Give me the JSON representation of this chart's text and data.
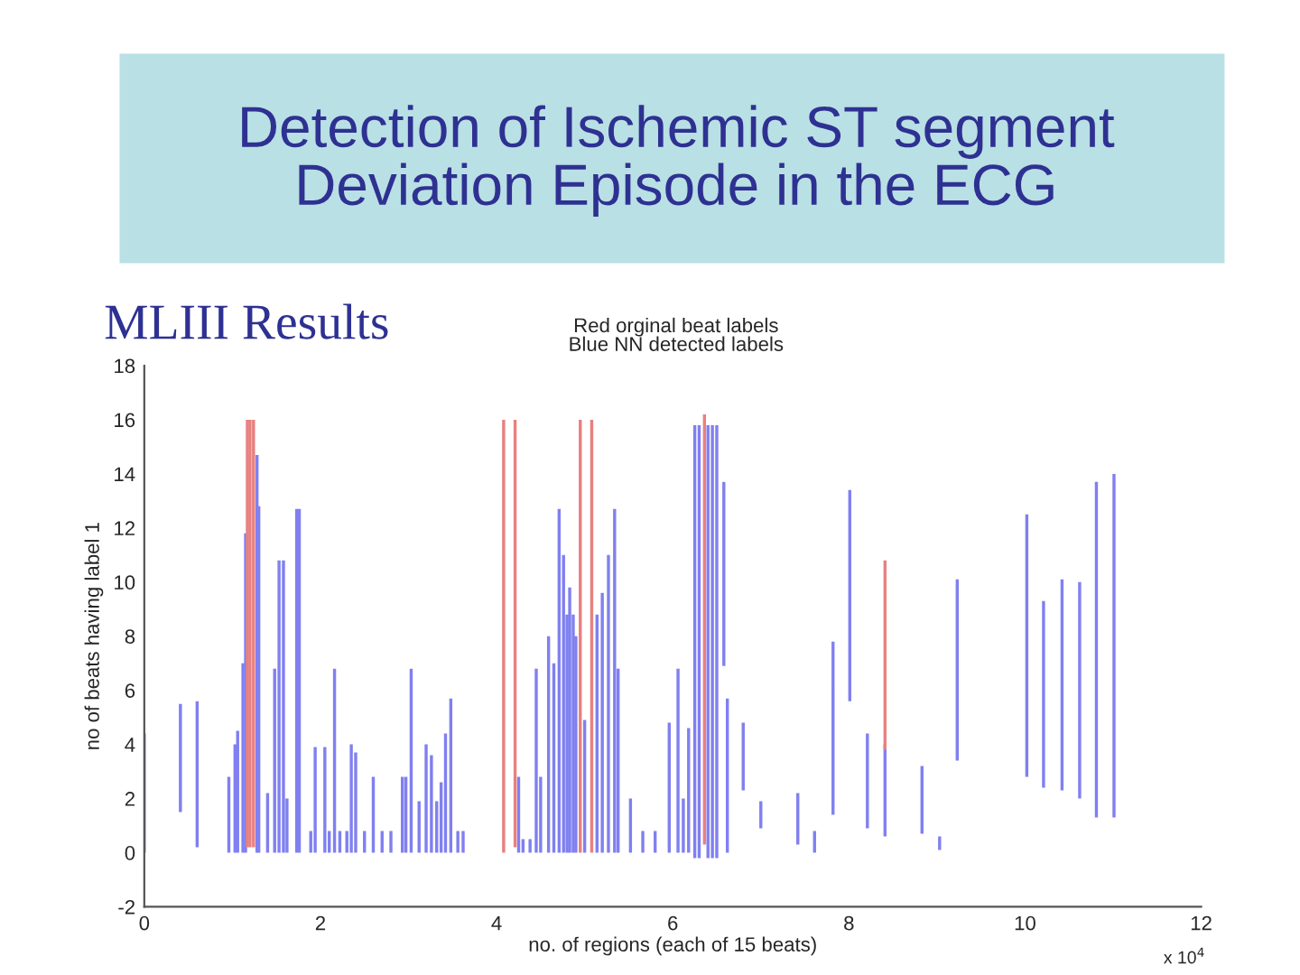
{
  "chart_data": {
    "type": "bar",
    "title": "Detection of Ischemic ST segment\nDeviation Episode in the ECG",
    "subtitle": "MLIII Results",
    "xlabel": "no. of regions (each of 15 beats)",
    "ylabel": "no of beats having label 1",
    "annotations": [
      "Red orginal beat labels\nBlue NN detected labels",
      "x 10$^{4}$"
    ],
    "series": [
      {
        "color": "#8080f0",
        "x": [
          0.0,
          0.41,
          0.6,
          0.96,
          1.03,
          1.06,
          1.12,
          1.15,
          1.28,
          1.3,
          1.4,
          1.48,
          1.53,
          1.58,
          1.62,
          1.73,
          1.76,
          1.89,
          1.94,
          2.05,
          2.1,
          2.16,
          2.22,
          2.3,
          2.35,
          2.4,
          2.5,
          2.6,
          2.7,
          2.8,
          2.93,
          2.97,
          3.03,
          3.12,
          3.2,
          3.26,
          3.32,
          3.37,
          3.42,
          3.48,
          3.56,
          3.62,
          4.25,
          4.3,
          4.38,
          4.45,
          4.5,
          4.59,
          4.65,
          4.71,
          4.76,
          4.8,
          4.83,
          4.87,
          4.9,
          5.0,
          5.14,
          5.2,
          5.27,
          5.34,
          5.38,
          5.52,
          5.66,
          5.8,
          5.96,
          6.06,
          6.12,
          6.18,
          6.25,
          6.3,
          6.4,
          6.45,
          6.5,
          6.58,
          6.62,
          6.8,
          7.0,
          7.42,
          7.61,
          7.82,
          8.01,
          8.21,
          8.41,
          8.83,
          9.03,
          9.23,
          10.02,
          10.21,
          10.42,
          10.62,
          10.81,
          11.01
        ],
        "base": [
          0,
          1.5,
          0.2,
          0,
          0,
          0,
          0,
          0,
          0,
          0,
          0,
          0,
          0,
          0,
          0,
          0,
          0,
          0,
          0,
          0,
          0,
          0,
          0,
          0,
          0,
          0,
          0,
          0,
          0,
          0,
          0,
          0,
          0,
          0,
          0,
          0,
          0,
          0,
          0,
          0,
          0,
          0,
          0,
          0,
          0,
          0,
          0,
          0,
          0,
          0,
          0,
          0,
          0,
          0,
          0,
          0,
          0,
          0,
          0,
          0,
          0,
          0,
          0,
          0,
          0,
          0,
          0,
          0,
          -0.2,
          -0.2,
          -0.2,
          -0.2,
          -0.2,
          6.9,
          0,
          2.3,
          0.9,
          0.3,
          0,
          1.4,
          5.6,
          0.9,
          0.6,
          0.7,
          0.1,
          3.4,
          2.8,
          2.4,
          2.3,
          2.0,
          1.3,
          1.3
        ],
        "values": [
          4.4,
          4.0,
          5.4,
          2.8,
          4,
          4.5,
          7,
          11.8,
          14.7,
          12.8,
          2.2,
          6.8,
          10.8,
          10.8,
          2,
          12.7,
          12.7,
          0.8,
          3.9,
          3.9,
          0.8,
          6.8,
          0.8,
          0.8,
          4,
          3.7,
          0.8,
          2.8,
          0.8,
          0.8,
          2.8,
          2.8,
          6.8,
          1.9,
          4,
          3.6,
          1.9,
          2.6,
          4.4,
          5.7,
          0.8,
          0.8,
          2.8,
          0.5,
          0.5,
          6.8,
          2.8,
          8,
          7,
          12.7,
          11,
          8.8,
          9.8,
          8.8,
          8,
          4.9,
          8.8,
          9.6,
          11,
          12.7,
          6.8,
          2,
          0.8,
          0.8,
          4.8,
          6.8,
          2,
          4.6,
          16.0,
          16.0,
          16.0,
          16.0,
          16.0,
          6.8,
          5.7,
          2.5,
          1.0,
          1.9,
          0.8,
          6.4,
          7.8,
          3.5,
          3.4,
          2.5,
          0.5,
          6.7,
          9.7,
          6.9,
          7.8,
          8.0,
          12.4,
          12.7
        ]
      },
      {
        "color": "#e88080",
        "x": [
          1.17,
          1.2,
          1.24,
          4.08,
          4.21,
          4.95,
          5.08,
          6.36,
          8.41
        ],
        "base": [
          0.2,
          0.2,
          0.2,
          0,
          0.2,
          0,
          0,
          0.3,
          3.8
        ],
        "values": [
          15.8,
          15.8,
          15.8,
          16,
          15.8,
          16,
          16,
          15.9,
          7.0
        ]
      }
    ],
    "xlim": [
      0,
      12
    ],
    "xticks": [
      0,
      2,
      4,
      6,
      8,
      10,
      12
    ],
    "ylim": [
      -2,
      18
    ],
    "yticks": [
      {
        "value": -2,
        "label": "-2"
      },
      0,
      2,
      4,
      6,
      8,
      10,
      12,
      14,
      16,
      18
    ],
    "grid": false,
    "legend": false
  }
}
